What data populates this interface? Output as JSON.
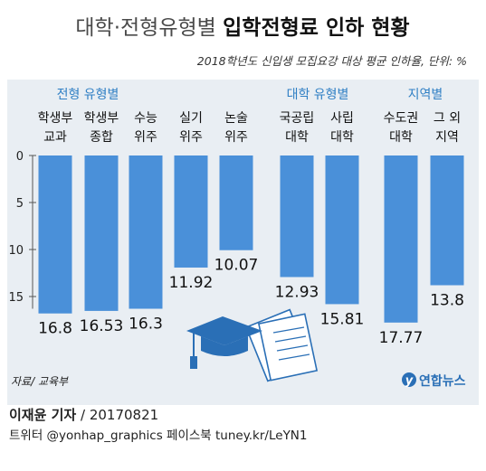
{
  "header": {
    "title_part1": "대학·전형유형별 ",
    "title_part2": "입학전형료 인하 현황",
    "subtitle": "2018학년도 신입생 모집요강 대상 평균 인하율, 단위: %"
  },
  "groups": [
    {
      "label": "전형 유형별",
      "color": "#2f7fc4"
    },
    {
      "label": "대학 유형별",
      "color": "#2f7fc4"
    },
    {
      "label": "지역별",
      "color": "#2f7fc4"
    }
  ],
  "chart_data": {
    "type": "bar",
    "title": "대학·전형유형별 입학전형료 인하 현황",
    "subtitle": "2018학년도 신입생 모집요강 대상 평균 인하율, 단위: %",
    "categories": [
      [
        "학생부",
        "교과"
      ],
      [
        "학생부",
        "종합"
      ],
      [
        "수능",
        "위주"
      ],
      [
        "실기",
        "위주"
      ],
      [
        "논술",
        "위주"
      ],
      [
        "국공립",
        "대학"
      ],
      [
        "사립",
        "대학"
      ],
      [
        "수도권",
        "대학"
      ],
      [
        "그 외",
        "지역"
      ]
    ],
    "values": [
      16.8,
      16.53,
      16.3,
      11.92,
      10.07,
      12.93,
      15.81,
      17.77,
      13.8
    ],
    "value_labels": [
      "16.8",
      "16.53",
      "16.3",
      "11.92",
      "10.07",
      "12.93",
      "15.81",
      "17.77",
      "13.8"
    ],
    "groups": [
      {
        "label": "전형 유형별",
        "members": [
          0,
          1,
          2,
          3,
          4
        ]
      },
      {
        "label": "대학 유형별",
        "members": [
          5,
          6
        ]
      },
      {
        "label": "지역별",
        "members": [
          7,
          8
        ]
      }
    ],
    "y_axis": {
      "ticks": [
        0,
        5,
        10,
        15
      ],
      "tick_labels": [
        "0",
        "5",
        "10",
        "15"
      ],
      "ylim": [
        0,
        17.77
      ],
      "direction": "down"
    },
    "bar_color": "#4a90d9",
    "grid": false
  },
  "footer": {
    "source": "자료/ 교육부",
    "author": "이재윤 기자",
    "date": " / 20170821",
    "social": "트위터 @yonhap_graphics  페이스북 tuney.kr/LeYN1",
    "logo_text": "연합뉴스",
    "logo_color": "#2a6fb6"
  },
  "icon": {
    "name": "graduation-cap-documents-icon",
    "color": "#2a6fb6"
  }
}
